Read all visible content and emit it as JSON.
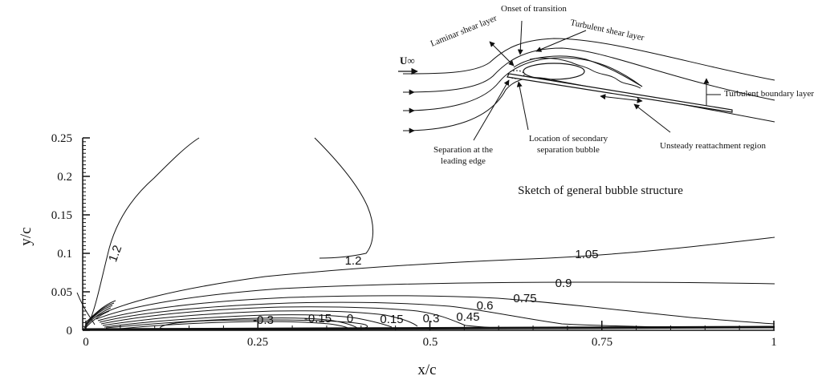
{
  "chart_data": {
    "type": "contour",
    "xlabel": "x/c",
    "ylabel": "y/c",
    "xlim": [
      0,
      1
    ],
    "ylim": [
      0,
      0.25
    ],
    "x_ticks": [
      "0",
      "0.25",
      "0.5",
      "0.75",
      "1"
    ],
    "y_ticks": [
      "0",
      "0.05",
      "0.1",
      "0.15",
      "0.2",
      "0.25"
    ],
    "contour_levels": [
      "-0.3",
      "-0.15",
      "0",
      "0.15",
      "0.3",
      "0.45",
      "0.6",
      "0.75",
      "0.9",
      "1.05",
      "1.2",
      "1.2"
    ]
  },
  "inset": {
    "caption": "Sketch of general bubble structure",
    "labels": {
      "laminar": "Laminar shear layer",
      "onset": "Onset of transition",
      "turbulent_shear": "Turbulent shear layer",
      "u_inf": "U∞",
      "turbulent_bl": "Turbulent boundary layer",
      "separation_line1": "Separation at the",
      "separation_line2": "leading edge",
      "secondary_line1": "Location of secondary",
      "secondary_line2": "separation bubble",
      "reattachment": "Unsteady reattachment region"
    }
  }
}
